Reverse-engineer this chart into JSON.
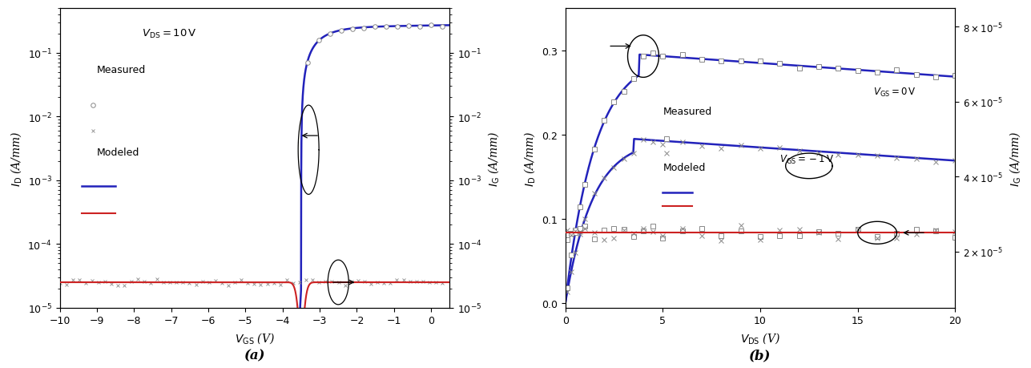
{
  "panel_a": {
    "xlabel": "$V_{\\mathrm{GS}}$ (V)",
    "ylabel_left": "$I_{\\mathrm{D}}$ (A/mm)",
    "ylabel_right": "$I_{\\mathrm{G}}$ (A/mm)",
    "xlim": [
      -10,
      0.5
    ],
    "ylim_log": [
      1e-05,
      0.5
    ],
    "xticks": [
      -10,
      -9,
      -8,
      -7,
      -6,
      -5,
      -4,
      -3,
      -2,
      -1,
      0
    ],
    "yticks_log": [
      1e-05,
      0.0001,
      0.001,
      0.01,
      0.1
    ],
    "vth": -3.5,
    "blue_color": "#2222bb",
    "red_color": "#cc2222",
    "annotation_text": "$V_{\\mathrm{DS}} = 10\\,\\mathrm{V}$",
    "legend_measured": "Measured",
    "legend_modeled": "Modeled"
  },
  "panel_b": {
    "xlabel": "$V_{\\mathrm{DS}}$ (V)",
    "ylabel_left": "$I_{\\mathrm{D}}$ (A/mm)",
    "ylabel_right": "$I_{\\mathrm{G}}$ (A/mm)",
    "xlim": [
      0,
      20
    ],
    "ylim_left": [
      -0.005,
      0.35
    ],
    "ylim_right": [
      5e-06,
      8.5e-05
    ],
    "xticks": [
      0,
      5,
      10,
      15,
      20
    ],
    "yticks_left": [
      0.0,
      0.1,
      0.2,
      0.3
    ],
    "yticks_right_vals": [
      2e-05,
      4e-05,
      6e-05,
      8e-05
    ],
    "yticks_right_labels": [
      "$2\\times10^{-5}$",
      "$4\\times10^{-5}$",
      "$6\\times10^{-5}$",
      "$8\\times10^{-5}$"
    ],
    "label_vgs0": "$V_{\\mathrm{GS}} = 0\\,\\mathrm{V}$",
    "label_vgs1": "$V_{\\mathrm{GS}} = -1\\,\\mathrm{V}$",
    "blue_color": "#2222bb",
    "red_color": "#cc2222",
    "legend_measured": "Measured",
    "legend_modeled": "Modeled"
  },
  "figure_label_a": "(a)",
  "figure_label_b": "(b)"
}
